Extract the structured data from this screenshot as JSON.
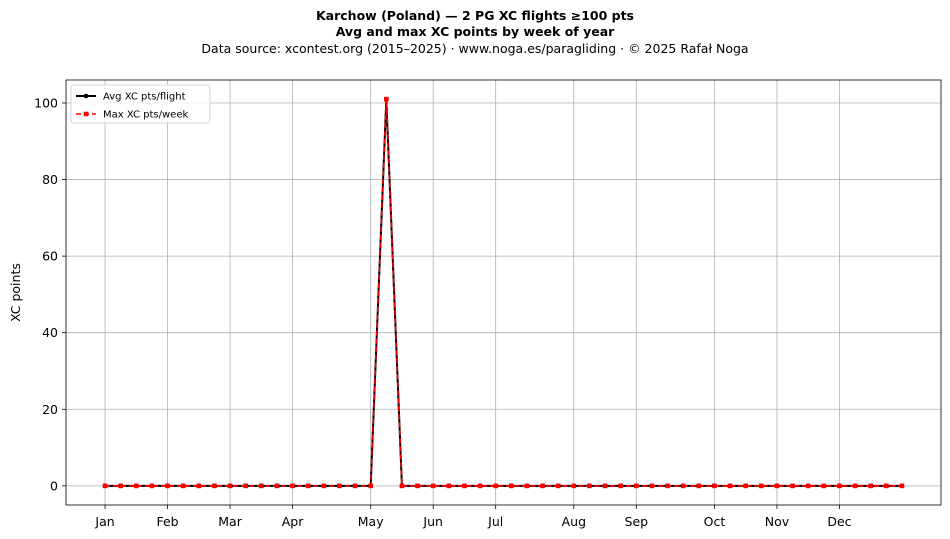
{
  "chart_data": {
    "type": "line",
    "title": "Karchow (Poland)  —  2 PG XC flights ≥100 pts",
    "subtitle": "Avg and max XC points by week of year",
    "source_note": "Data source: xcontest.org (2015–2025)  ·  www.noga.es/paragliding  ·  © 2025 Rafał Noga",
    "xlabel": "",
    "ylabel": "XC points",
    "x_ticks": [
      {
        "label": "Jan",
        "week": 1
      },
      {
        "label": "Feb",
        "week": 5
      },
      {
        "label": "Mar",
        "week": 9
      },
      {
        "label": "Apr",
        "week": 13
      },
      {
        "label": "May",
        "week": 18
      },
      {
        "label": "Jun",
        "week": 22
      },
      {
        "label": "Jul",
        "week": 26
      },
      {
        "label": "Aug",
        "week": 31
      },
      {
        "label": "Sep",
        "week": 35
      },
      {
        "label": "Oct",
        "week": 40
      },
      {
        "label": "Nov",
        "week": 44
      },
      {
        "label": "Dec",
        "week": 48
      }
    ],
    "y_ticks": [
      0,
      20,
      40,
      60,
      80,
      100
    ],
    "xlim": [
      -1.5,
      54.5
    ],
    "ylim": [
      -5,
      106
    ],
    "grid": true,
    "legend_position": "top-left",
    "x": [
      1,
      2,
      3,
      4,
      5,
      6,
      7,
      8,
      9,
      10,
      11,
      12,
      13,
      14,
      15,
      16,
      17,
      18,
      19,
      20,
      21,
      22,
      23,
      24,
      25,
      26,
      27,
      28,
      29,
      30,
      31,
      32,
      33,
      34,
      35,
      36,
      37,
      38,
      39,
      40,
      41,
      42,
      43,
      44,
      45,
      46,
      47,
      48,
      49,
      50,
      51,
      52
    ],
    "series": [
      {
        "name": "Avg XC pts/flight",
        "color": "#000000",
        "marker": "circle",
        "linestyle": "solid",
        "values": [
          0,
          0,
          0,
          0,
          0,
          0,
          0,
          0,
          0,
          0,
          0,
          0,
          0,
          0,
          0,
          0,
          0,
          0,
          101,
          0,
          0,
          0,
          0,
          0,
          0,
          0,
          0,
          0,
          0,
          0,
          0,
          0,
          0,
          0,
          0,
          0,
          0,
          0,
          0,
          0,
          0,
          0,
          0,
          0,
          0,
          0,
          0,
          0,
          0,
          0,
          0,
          0
        ]
      },
      {
        "name": "Max XC pts/week",
        "color": "#ff0000",
        "marker": "square",
        "linestyle": "dashed",
        "values": [
          0,
          0,
          0,
          0,
          0,
          0,
          0,
          0,
          0,
          0,
          0,
          0,
          0,
          0,
          0,
          0,
          0,
          0,
          101,
          0,
          0,
          0,
          0,
          0,
          0,
          0,
          0,
          0,
          0,
          0,
          0,
          0,
          0,
          0,
          0,
          0,
          0,
          0,
          0,
          0,
          0,
          0,
          0,
          0,
          0,
          0,
          0,
          0,
          0,
          0,
          0,
          0
        ]
      }
    ]
  }
}
